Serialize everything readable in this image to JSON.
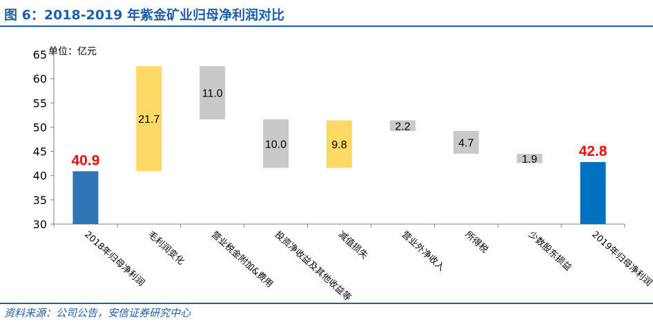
{
  "title": "图 6：2018-2019 年紫金矿业归母净利润对比",
  "source": "资料来源：公司公告，安信证券研究中心",
  "chart_data": {
    "type": "bar",
    "subtype": "waterfall",
    "unit_label": "单位：亿元",
    "ylim": [
      30,
      65
    ],
    "yticks": [
      30,
      35,
      40,
      45,
      50,
      55,
      60,
      65
    ],
    "grid": false,
    "legend": "none",
    "categories": [
      "2018年归母净利润",
      "毛利润变化",
      "营业税金附加&费用",
      "投资净收益及其他收益等",
      "减值损失",
      "营业外净收入",
      "所得税",
      "少数股东损益",
      "2019年归母净利润"
    ],
    "bars": [
      {
        "label": "40.9",
        "start": 30,
        "end": 40.9,
        "color": "#2e75b6",
        "label_style": "highlight"
      },
      {
        "label": "21.7",
        "start": 40.9,
        "end": 62.6,
        "color": "#ffd966",
        "label_style": "inside"
      },
      {
        "label": "11.0",
        "start": 51.6,
        "end": 62.6,
        "color": "#c9c9c9",
        "label_style": "inside"
      },
      {
        "label": "10.0",
        "start": 41.6,
        "end": 51.6,
        "color": "#c9c9c9",
        "label_style": "inside"
      },
      {
        "label": "9.8",
        "start": 41.6,
        "end": 51.4,
        "color": "#ffd966",
        "label_style": "inside"
      },
      {
        "label": "2.2",
        "start": 49.2,
        "end": 51.4,
        "color": "#c9c9c9",
        "label_style": "inside"
      },
      {
        "label": "4.7",
        "start": 44.5,
        "end": 49.2,
        "color": "#c9c9c9",
        "label_style": "inside"
      },
      {
        "label": "1.9",
        "start": 42.6,
        "end": 44.5,
        "color": "#c9c9c9",
        "label_style": "inside"
      },
      {
        "label": "42.8",
        "start": 30,
        "end": 42.8,
        "color": "#0070c0",
        "label_style": "highlight"
      }
    ],
    "highlight_label_color": "#ff0000"
  }
}
